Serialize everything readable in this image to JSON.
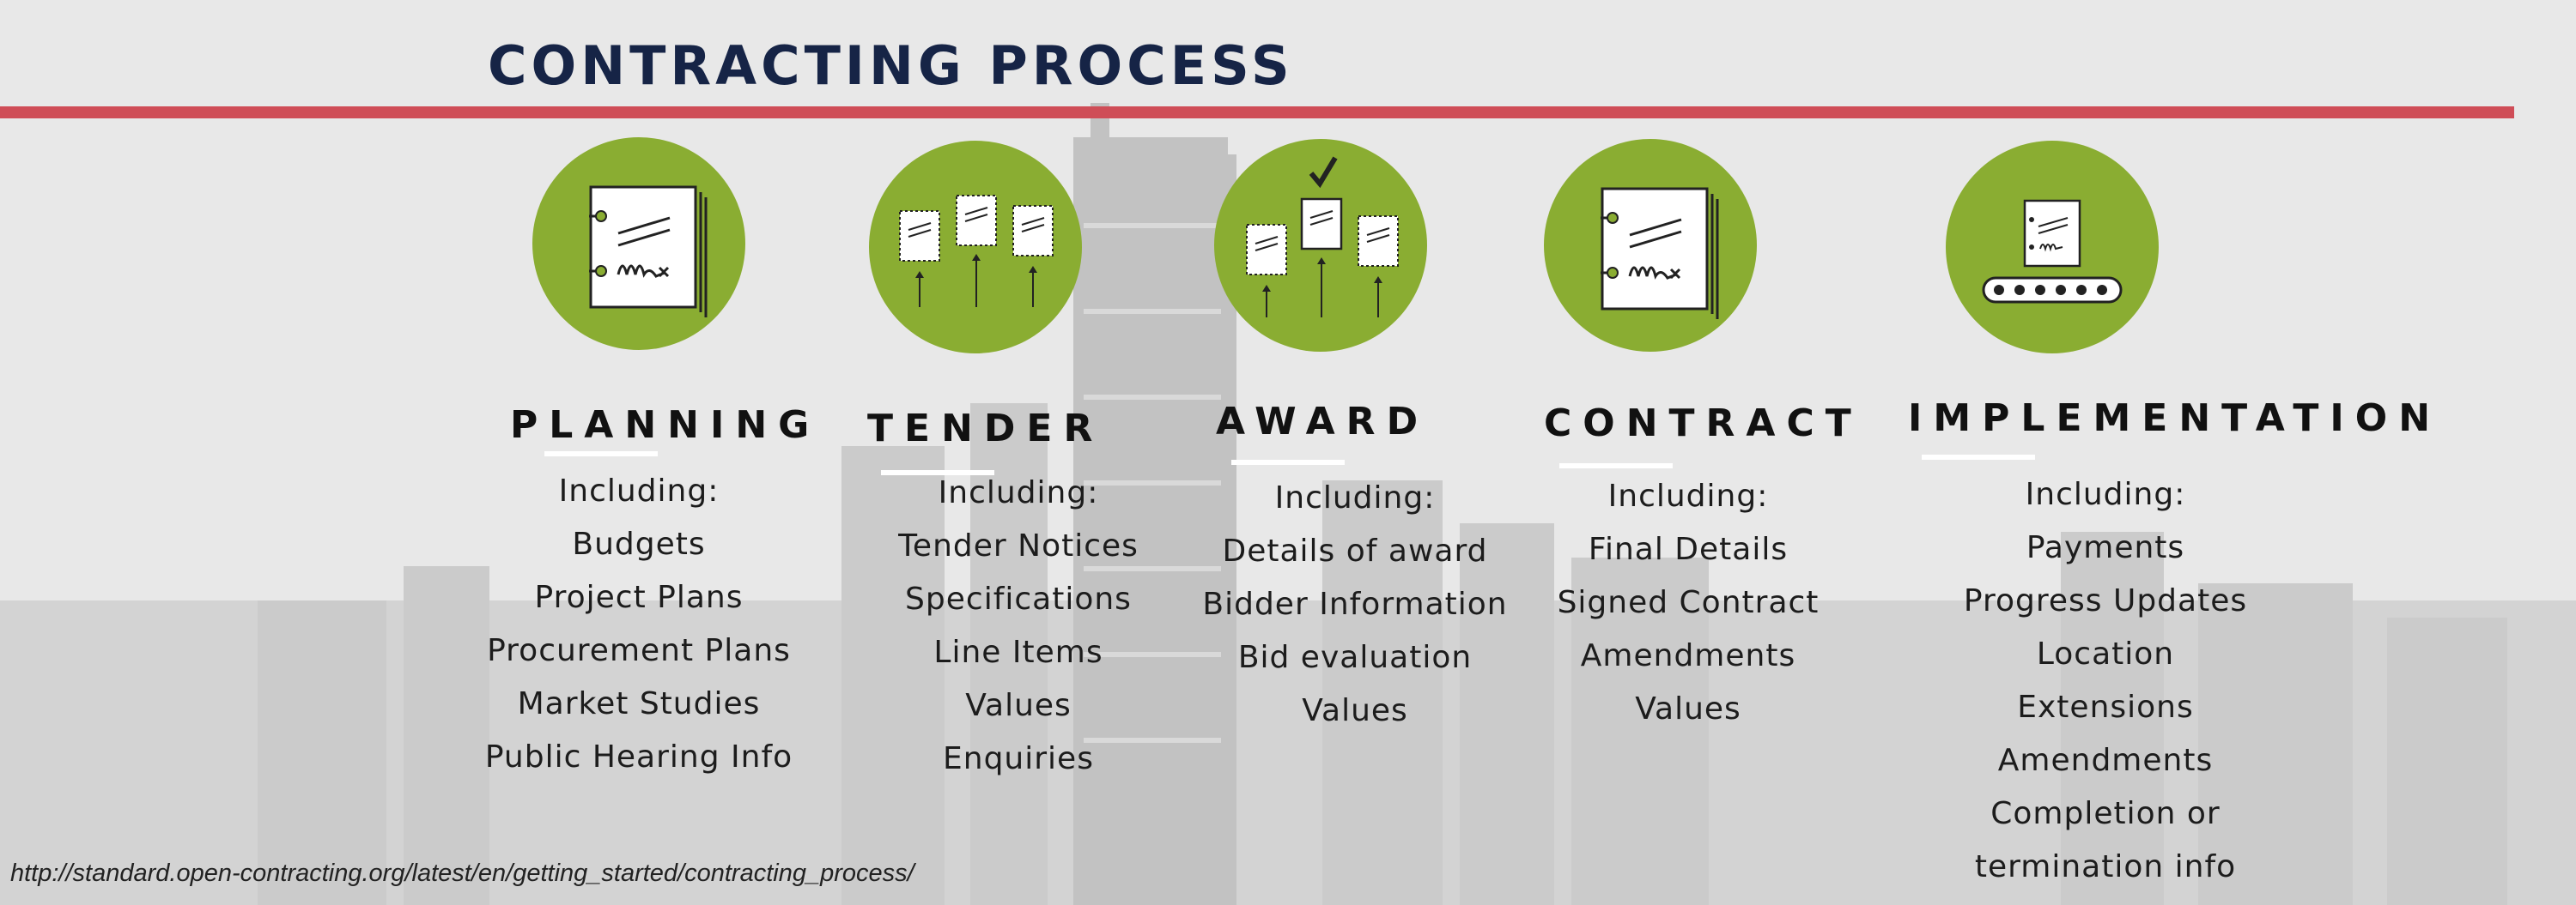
{
  "title": "CONTRACTING PROCESS",
  "colors": {
    "accent_red": "#cf4d57",
    "circle_green": "#8aad32",
    "title_navy": "#162446"
  },
  "stages": [
    {
      "name": "PLANNING",
      "icon": "signed-document-icon",
      "including": "Including:",
      "items": [
        "Budgets",
        "Project Plans",
        "Procurement Plans",
        "Market Studies",
        "Public Hearing Info"
      ]
    },
    {
      "name": "TENDER",
      "icon": "tender-documents-icon",
      "including": "Including:",
      "items": [
        "Tender Notices",
        "Specifications",
        "Line Items",
        "Values",
        "Enquiries"
      ]
    },
    {
      "name": "AWARD",
      "icon": "award-selection-icon",
      "including": "Including:",
      "items": [
        "Details of award",
        "Bidder Information",
        "Bid evaluation",
        "Values"
      ]
    },
    {
      "name": "CONTRACT",
      "icon": "signed-contract-icon",
      "including": "Including:",
      "items": [
        "Final Details",
        "Signed Contract",
        "Amendments",
        "Values"
      ]
    },
    {
      "name": "IMPLEMENTATION",
      "icon": "conveyor-document-icon",
      "including": "Including:",
      "items": [
        "Payments",
        "Progress Updates",
        "Location",
        "Extensions",
        "Amendments",
        "Completion or",
        "termination info"
      ]
    }
  ],
  "footer_url": "http://standard.open-contracting.org/latest/en/getting_started/contracting_process/"
}
